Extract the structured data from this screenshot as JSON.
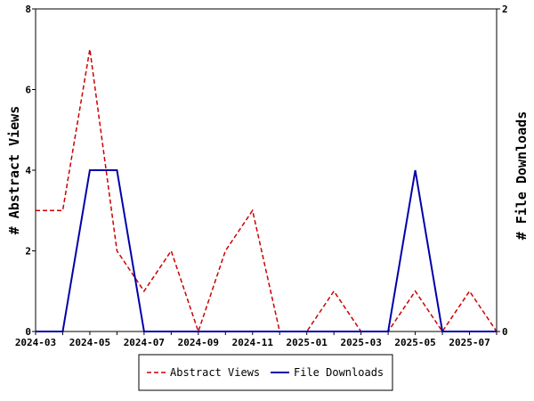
{
  "chart_data": {
    "type": "line",
    "x": [
      "2024-03",
      "2024-04",
      "2024-05",
      "2024-06",
      "2024-07",
      "2024-08",
      "2024-09",
      "2024-10",
      "2024-11",
      "2024-12",
      "2025-01",
      "2025-02",
      "2025-03",
      "2025-04",
      "2025-05",
      "2025-06",
      "2025-07",
      "2025-08"
    ],
    "x_tick_labels": [
      "2024-03",
      "2024-05",
      "2024-07",
      "2024-09",
      "2024-11",
      "2025-01",
      "2025-03",
      "2025-05",
      "2025-07"
    ],
    "y_left": {
      "label": "# Abstract Views",
      "range": [
        0,
        8
      ],
      "ticks": [
        "0",
        "2",
        "4",
        "6",
        "8"
      ]
    },
    "y_right": {
      "label": "# File Downloads",
      "range": [
        0,
        2
      ],
      "ticks": [
        "0",
        "2"
      ]
    },
    "series": [
      {
        "name": "Abstract Views",
        "axis": "left",
        "color": "#cc0000",
        "style": "dashed",
        "values": [
          3,
          3,
          7,
          2,
          1,
          2,
          0,
          2,
          3,
          0,
          0,
          1,
          0,
          0,
          1,
          0,
          1,
          0
        ]
      },
      {
        "name": "File Downloads",
        "axis": "right",
        "color": "#0000aa",
        "style": "solid",
        "points": [
          [
            "2024-03",
            0
          ],
          [
            "2024-04",
            0
          ],
          [
            "2024-05",
            1
          ],
          [
            "2024-06",
            1
          ],
          [
            "2024-07",
            0
          ],
          [
            "2024-08",
            0
          ],
          [
            "2024-09",
            0
          ],
          [
            "2024-10",
            0
          ],
          [
            "2024-11",
            0
          ],
          [
            "2024-12",
            0
          ],
          [
            "2025-01",
            0
          ],
          [
            "2025-02",
            0
          ],
          [
            "2025-03",
            0
          ],
          [
            "2025-04",
            0
          ],
          [
            "2025-05",
            1
          ],
          [
            "2025-06",
            0
          ],
          [
            "2025-07",
            0
          ],
          [
            "2025-08",
            0
          ]
        ]
      }
    ],
    "legend": {
      "position": "bottom",
      "entries": [
        "Abstract Views",
        "File Downloads"
      ]
    },
    "grid": false
  }
}
